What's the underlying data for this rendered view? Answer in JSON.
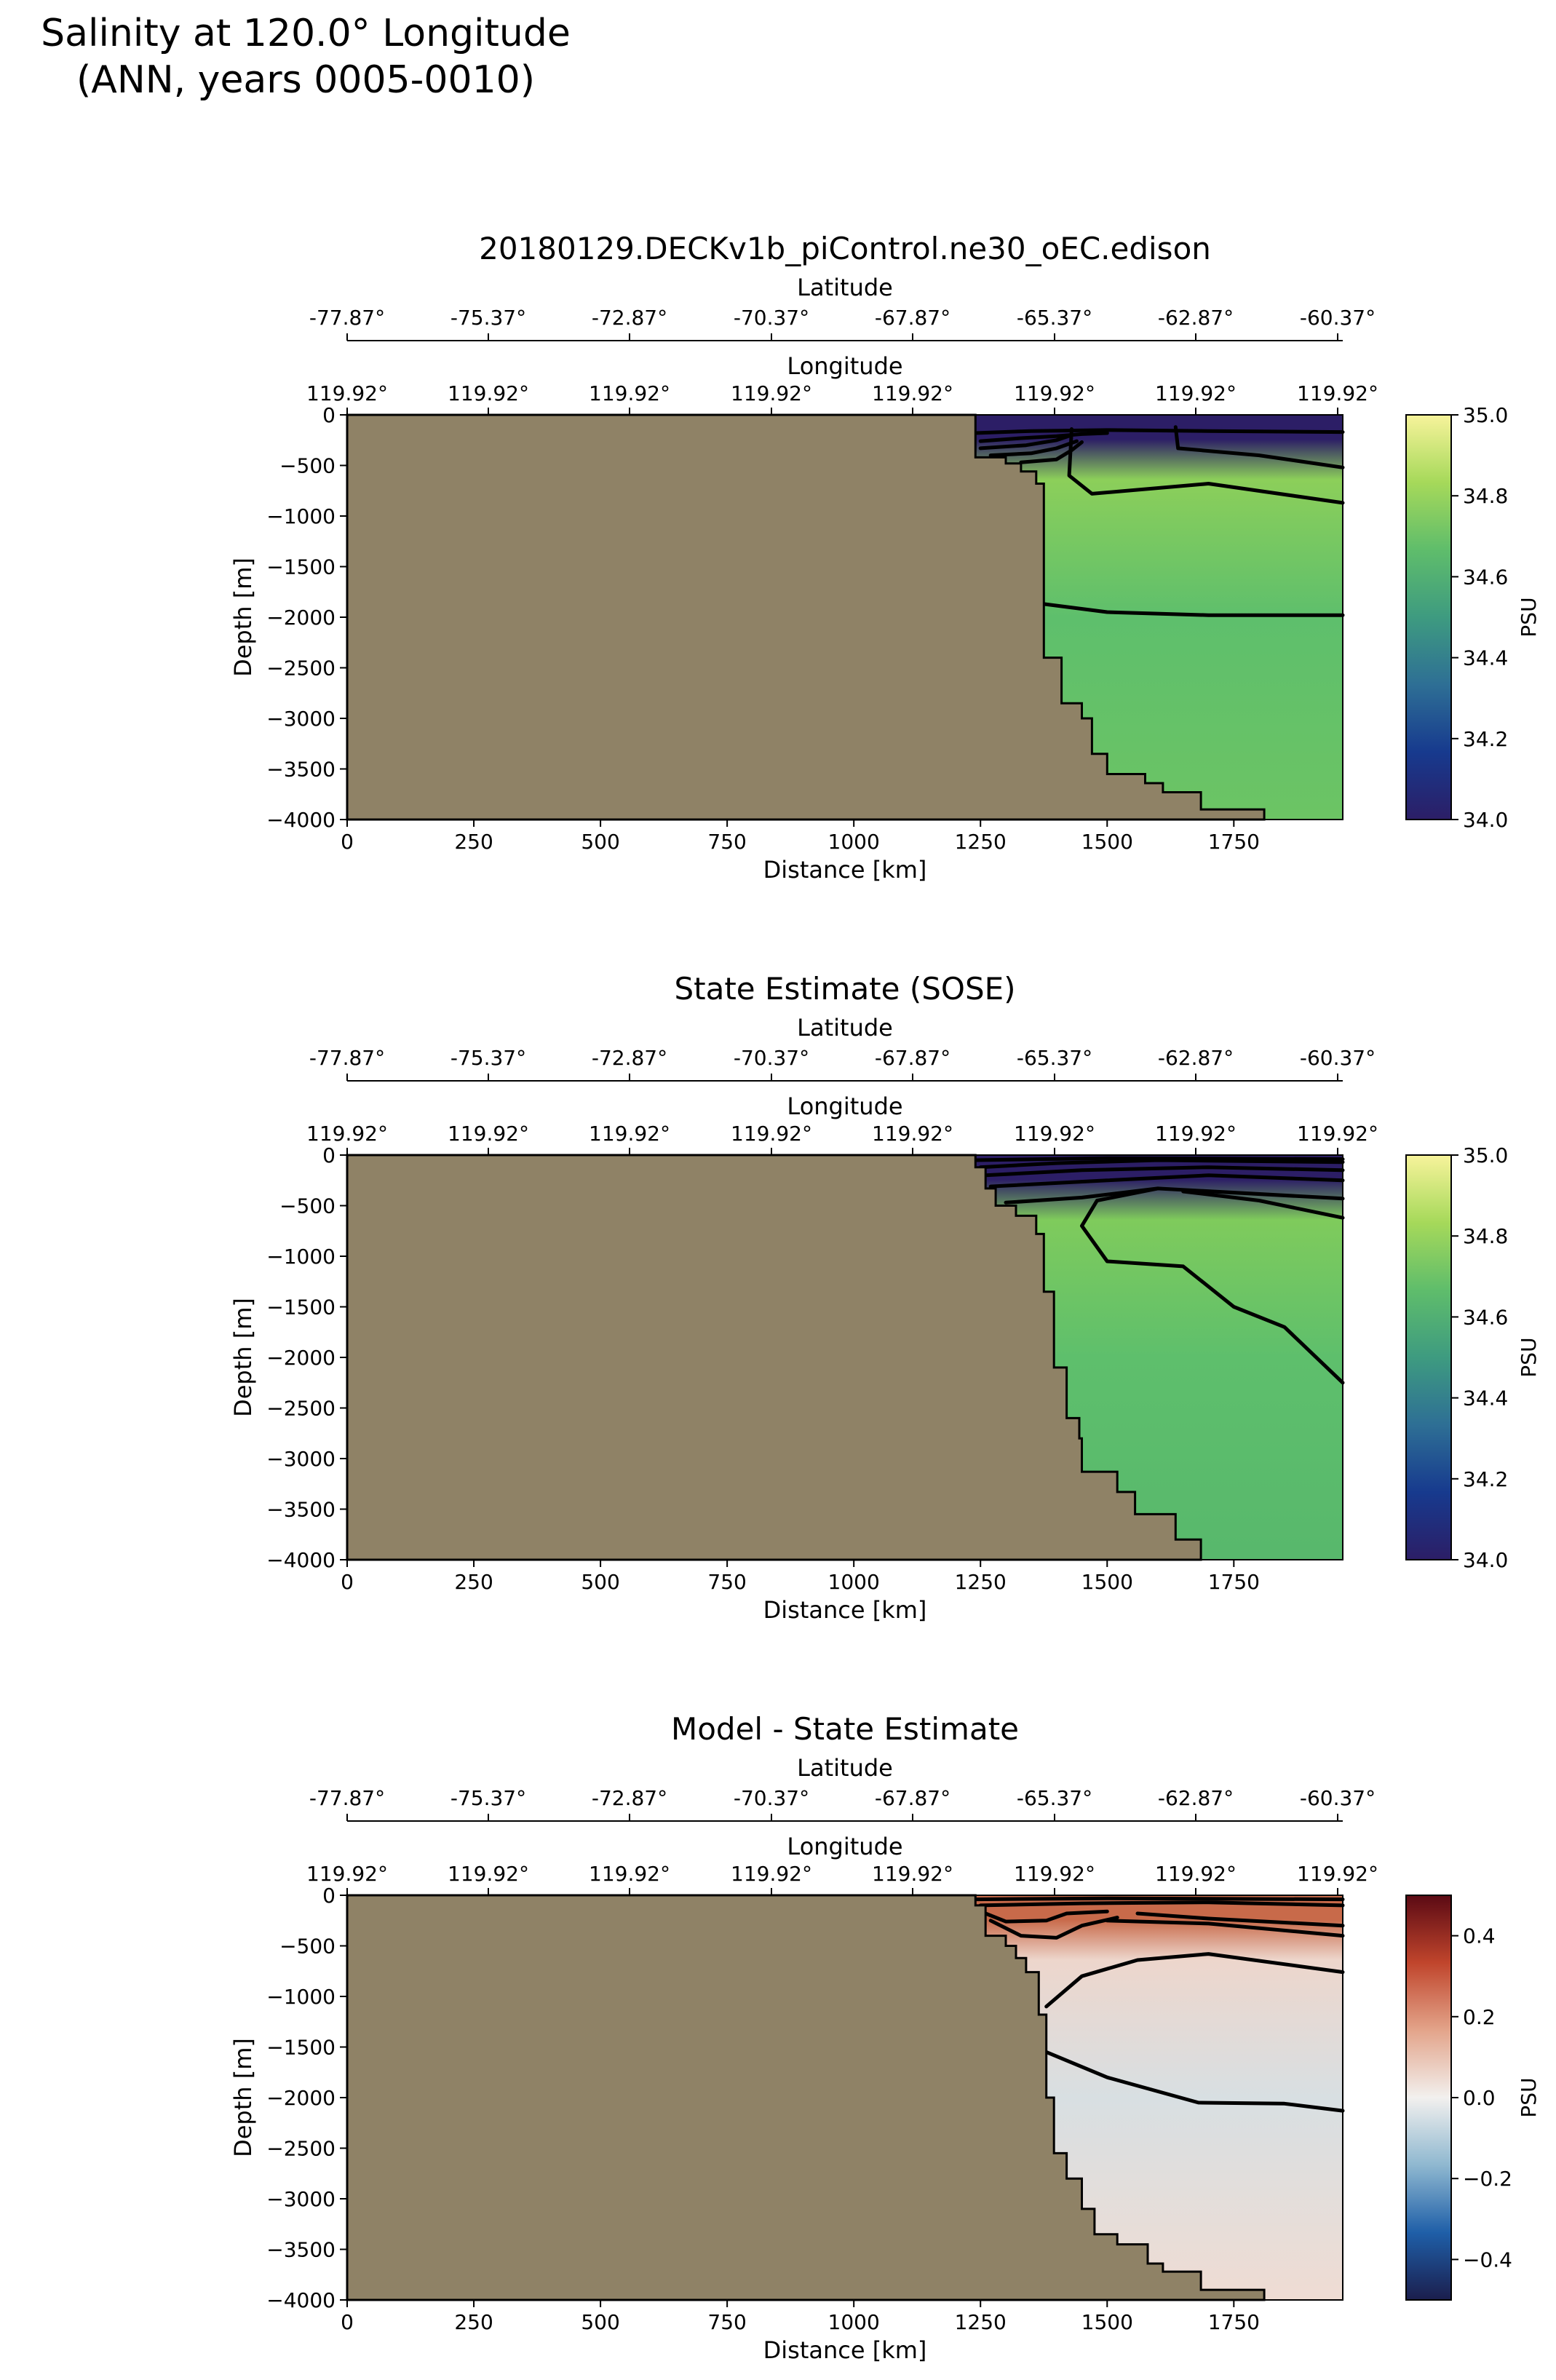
{
  "figure": {
    "title_line1": "Salinity at 120.0° Longitude",
    "title_line2": "(ANN, years 0005-0010)"
  },
  "colors": {
    "land": "#8f8266",
    "contour": "#000000"
  },
  "axes_text": {
    "xlabel": "Distance [km]",
    "ylabel": "Depth [m]",
    "lat_label": "Latitude",
    "lon_label": "Longitude",
    "xticks": [
      "0",
      "250",
      "500",
      "750",
      "1000",
      "1250",
      "1500",
      "1750"
    ],
    "yticks": [
      "0",
      "−500",
      "−1000",
      "−1500",
      "−2000",
      "−2500",
      "−3000",
      "−3500",
      "−4000"
    ],
    "lat_ticks": [
      "-77.87°",
      "-75.37°",
      "-72.87°",
      "-70.37°",
      "-67.87°",
      "-65.37°",
      "-62.87°",
      "-60.37°"
    ],
    "lon_ticks": [
      "119.92°",
      "119.92°",
      "119.92°",
      "119.92°",
      "119.92°",
      "119.92°",
      "119.92°",
      "119.92°"
    ]
  },
  "chart_data": [
    {
      "type": "heatmap",
      "title": "20180129.DECKv1b_piControl.ne30_oEC.edison",
      "xlabel": "Distance [km]",
      "ylabel": "Depth [m]",
      "xlim": [
        0,
        1965
      ],
      "ylim": [
        -4000,
        0
      ],
      "colorbar": {
        "label": "PSU",
        "range": [
          34.0,
          35.0
        ],
        "ticks": [
          "34.0",
          "34.2",
          "34.4",
          "34.6",
          "34.8",
          "35.0"
        ],
        "colormap": [
          "#2c1e66",
          "#173a8e",
          "#2e6f95",
          "#3e9b80",
          "#5fbd6b",
          "#a6d95a",
          "#f7f39b"
        ]
      },
      "field_colors": {
        "surface": "#2c1e66",
        "upper": "#8ccf5a",
        "mid": "#5ebf6c",
        "deep": "#6cc464"
      },
      "land_boundary": [
        [
          1240,
          0
        ],
        [
          1240,
          -420
        ],
        [
          1300,
          -420
        ],
        [
          1300,
          -480
        ],
        [
          1330,
          -480
        ],
        [
          1330,
          -560
        ],
        [
          1360,
          -560
        ],
        [
          1360,
          -680
        ],
        [
          1375,
          -680
        ],
        [
          1375,
          -2400
        ],
        [
          1410,
          -2400
        ],
        [
          1410,
          -2850
        ],
        [
          1450,
          -2850
        ],
        [
          1450,
          -3000
        ],
        [
          1470,
          -3000
        ],
        [
          1470,
          -3350
        ],
        [
          1500,
          -3350
        ],
        [
          1500,
          -3550
        ],
        [
          1575,
          -3550
        ],
        [
          1575,
          -3640
        ],
        [
          1610,
          -3640
        ],
        [
          1610,
          -3730
        ],
        [
          1685,
          -3730
        ],
        [
          1685,
          -3900
        ],
        [
          1810,
          -3900
        ],
        [
          1810,
          -4000
        ]
      ],
      "contours": [
        [
          [
            1240,
            -180
          ],
          [
            1350,
            -160
          ],
          [
            1500,
            -150
          ],
          [
            1700,
            -160
          ],
          [
            1965,
            -170
          ]
        ],
        [
          [
            1250,
            -260
          ],
          [
            1330,
            -230
          ],
          [
            1400,
            -210
          ],
          [
            1450,
            -190
          ],
          [
            1500,
            -180
          ]
        ],
        [
          [
            1250,
            -330
          ],
          [
            1340,
            -300
          ],
          [
            1400,
            -250
          ],
          [
            1430,
            -200
          ]
        ],
        [
          [
            1270,
            -400
          ],
          [
            1350,
            -380
          ],
          [
            1400,
            -330
          ],
          [
            1440,
            -260
          ]
        ],
        [
          [
            1330,
            -470
          ],
          [
            1400,
            -440
          ],
          [
            1430,
            -350
          ],
          [
            1450,
            -270
          ]
        ],
        [
          [
            1430,
            -140
          ],
          [
            1425,
            -600
          ],
          [
            1470,
            -780
          ],
          [
            1700,
            -680
          ],
          [
            1965,
            -870
          ]
        ],
        [
          [
            1635,
            -120
          ],
          [
            1640,
            -330
          ],
          [
            1800,
            -400
          ],
          [
            1965,
            -520
          ]
        ],
        [
          [
            1375,
            -1870
          ],
          [
            1500,
            -1950
          ],
          [
            1700,
            -1980
          ],
          [
            1965,
            -1980
          ]
        ]
      ]
    },
    {
      "type": "heatmap",
      "title": "State Estimate (SOSE)",
      "xlabel": "Distance [km]",
      "ylabel": "Depth [m]",
      "xlim": [
        0,
        1965
      ],
      "ylim": [
        -4000,
        0
      ],
      "colorbar": {
        "label": "PSU",
        "range": [
          34.0,
          35.0
        ],
        "ticks": [
          "34.0",
          "34.2",
          "34.4",
          "34.6",
          "34.8",
          "35.0"
        ],
        "colormap": [
          "#2c1e66",
          "#173a8e",
          "#2e6f95",
          "#3e9b80",
          "#5fbd6b",
          "#a6d95a",
          "#f7f39b"
        ]
      },
      "field_colors": {
        "surface": "#2c1e66",
        "upper": "#7fcb5c",
        "mid": "#5ebf6c",
        "deep": "#58b86c"
      },
      "land_boundary": [
        [
          1240,
          0
        ],
        [
          1240,
          -120
        ],
        [
          1260,
          -120
        ],
        [
          1260,
          -330
        ],
        [
          1280,
          -330
        ],
        [
          1280,
          -500
        ],
        [
          1320,
          -500
        ],
        [
          1320,
          -600
        ],
        [
          1360,
          -600
        ],
        [
          1360,
          -780
        ],
        [
          1375,
          -780
        ],
        [
          1375,
          -1350
        ],
        [
          1395,
          -1350
        ],
        [
          1395,
          -2100
        ],
        [
          1420,
          -2100
        ],
        [
          1420,
          -2600
        ],
        [
          1445,
          -2600
        ],
        [
          1445,
          -2800
        ],
        [
          1450,
          -2800
        ],
        [
          1450,
          -3130
        ],
        [
          1520,
          -3130
        ],
        [
          1520,
          -3330
        ],
        [
          1555,
          -3330
        ],
        [
          1555,
          -3550
        ],
        [
          1635,
          -3550
        ],
        [
          1635,
          -3800
        ],
        [
          1685,
          -3800
        ],
        [
          1685,
          -4000
        ]
      ],
      "contours": [
        [
          [
            1240,
            -50
          ],
          [
            1500,
            -30
          ],
          [
            1965,
            -40
          ]
        ],
        [
          [
            1250,
            -120
          ],
          [
            1400,
            -80
          ],
          [
            1600,
            -50
          ],
          [
            1965,
            -70
          ]
        ],
        [
          [
            1260,
            -200
          ],
          [
            1450,
            -150
          ],
          [
            1700,
            -120
          ],
          [
            1965,
            -150
          ]
        ],
        [
          [
            1270,
            -310
          ],
          [
            1500,
            -250
          ],
          [
            1700,
            -200
          ],
          [
            1965,
            -250
          ]
        ],
        [
          [
            1300,
            -470
          ],
          [
            1450,
            -420
          ],
          [
            1600,
            -330
          ],
          [
            1965,
            -430
          ]
        ],
        [
          [
            1600,
            -330
          ],
          [
            1480,
            -450
          ],
          [
            1450,
            -700
          ],
          [
            1500,
            -1050
          ],
          [
            1650,
            -1100
          ],
          [
            1750,
            -1500
          ],
          [
            1850,
            -1700
          ],
          [
            1965,
            -2250
          ]
        ],
        [
          [
            1650,
            -360
          ],
          [
            1800,
            -450
          ],
          [
            1965,
            -620
          ]
        ]
      ]
    },
    {
      "type": "heatmap",
      "title": "Model - State Estimate",
      "xlabel": "Distance [km]",
      "ylabel": "Depth [m]",
      "xlim": [
        0,
        1965
      ],
      "ylim": [
        -4000,
        0
      ],
      "colorbar": {
        "label": "PSU",
        "range": [
          -0.5,
          0.5
        ],
        "ticks": [
          "−0.4",
          "−0.2",
          "0.0",
          "0.2",
          "0.4"
        ],
        "colormap": [
          "#1b1e4d",
          "#1f5fa8",
          "#8fb8d0",
          "#f2f0ee",
          "#e3a48a",
          "#c0452c",
          "#5b0a14"
        ]
      },
      "field_colors": {
        "surface": "#c86a4a",
        "upper": "#edd6cc",
        "mid": "#d8dfe2",
        "deep": "#efdcd3"
      },
      "land_boundary": [
        [
          1240,
          0
        ],
        [
          1240,
          -100
        ],
        [
          1260,
          -100
        ],
        [
          1260,
          -400
        ],
        [
          1300,
          -400
        ],
        [
          1300,
          -500
        ],
        [
          1320,
          -500
        ],
        [
          1320,
          -620
        ],
        [
          1340,
          -620
        ],
        [
          1340,
          -760
        ],
        [
          1365,
          -760
        ],
        [
          1365,
          -1180
        ],
        [
          1380,
          -1180
        ],
        [
          1380,
          -2000
        ],
        [
          1395,
          -2000
        ],
        [
          1395,
          -2550
        ],
        [
          1420,
          -2550
        ],
        [
          1420,
          -2800
        ],
        [
          1450,
          -2800
        ],
        [
          1450,
          -3100
        ],
        [
          1475,
          -3100
        ],
        [
          1475,
          -3350
        ],
        [
          1520,
          -3350
        ],
        [
          1520,
          -3450
        ],
        [
          1580,
          -3450
        ],
        [
          1580,
          -3640
        ],
        [
          1610,
          -3640
        ],
        [
          1610,
          -3720
        ],
        [
          1685,
          -3720
        ],
        [
          1685,
          -3900
        ],
        [
          1810,
          -3900
        ],
        [
          1810,
          -4000
        ]
      ],
      "contours": [
        [
          [
            1240,
            -40
          ],
          [
            1500,
            -30
          ],
          [
            1965,
            -40
          ]
        ],
        [
          [
            1250,
            -100
          ],
          [
            1450,
            -80
          ],
          [
            1700,
            -70
          ],
          [
            1965,
            -100
          ]
        ],
        [
          [
            1260,
            -180
          ],
          [
            1300,
            -260
          ],
          [
            1380,
            -250
          ],
          [
            1420,
            -180
          ],
          [
            1500,
            -160
          ]
        ],
        [
          [
            1270,
            -250
          ],
          [
            1330,
            -400
          ],
          [
            1400,
            -420
          ],
          [
            1450,
            -300
          ],
          [
            1520,
            -220
          ]
        ],
        [
          [
            1500,
            -250
          ],
          [
            1700,
            -280
          ],
          [
            1965,
            -400
          ]
        ],
        [
          [
            1560,
            -180
          ],
          [
            1700,
            -230
          ],
          [
            1965,
            -300
          ]
        ],
        [
          [
            1380,
            -1100
          ],
          [
            1450,
            -800
          ],
          [
            1560,
            -640
          ],
          [
            1700,
            -580
          ],
          [
            1965,
            -760
          ]
        ],
        [
          [
            1380,
            -1550
          ],
          [
            1500,
            -1800
          ],
          [
            1680,
            -2050
          ],
          [
            1850,
            -2060
          ],
          [
            1965,
            -2130
          ]
        ]
      ]
    }
  ]
}
